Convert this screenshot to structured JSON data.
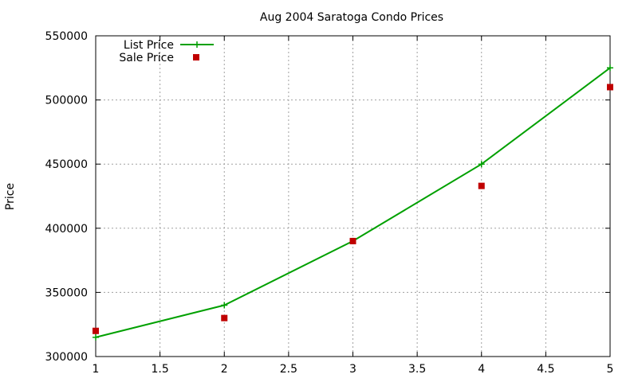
{
  "chart_data": {
    "type": "line",
    "title": "Aug 2004 Saratoga Condo Prices",
    "xlabel": "",
    "ylabel": "Price",
    "xlim": [
      1,
      5
    ],
    "ylim": [
      300000,
      550000
    ],
    "xticks": [
      "1",
      "1.5",
      "2",
      "2.5",
      "3",
      "3.5",
      "4",
      "4.5",
      "5"
    ],
    "yticks": [
      "300000",
      "350000",
      "400000",
      "450000",
      "500000",
      "550000"
    ],
    "grid": true,
    "legend_position": "top-left",
    "series": [
      {
        "name": "List Price",
        "style": "line-with-plus-markers",
        "color": "#00a000",
        "x": [
          1,
          2,
          3,
          4,
          5
        ],
        "y": [
          315000,
          340000,
          390000,
          450000,
          525000
        ]
      },
      {
        "name": "Sale Price",
        "style": "square-markers",
        "color": "#c00000",
        "x": [
          1,
          2,
          3,
          4,
          5
        ],
        "y": [
          320000,
          330000,
          390000,
          433000,
          510000
        ]
      }
    ]
  }
}
